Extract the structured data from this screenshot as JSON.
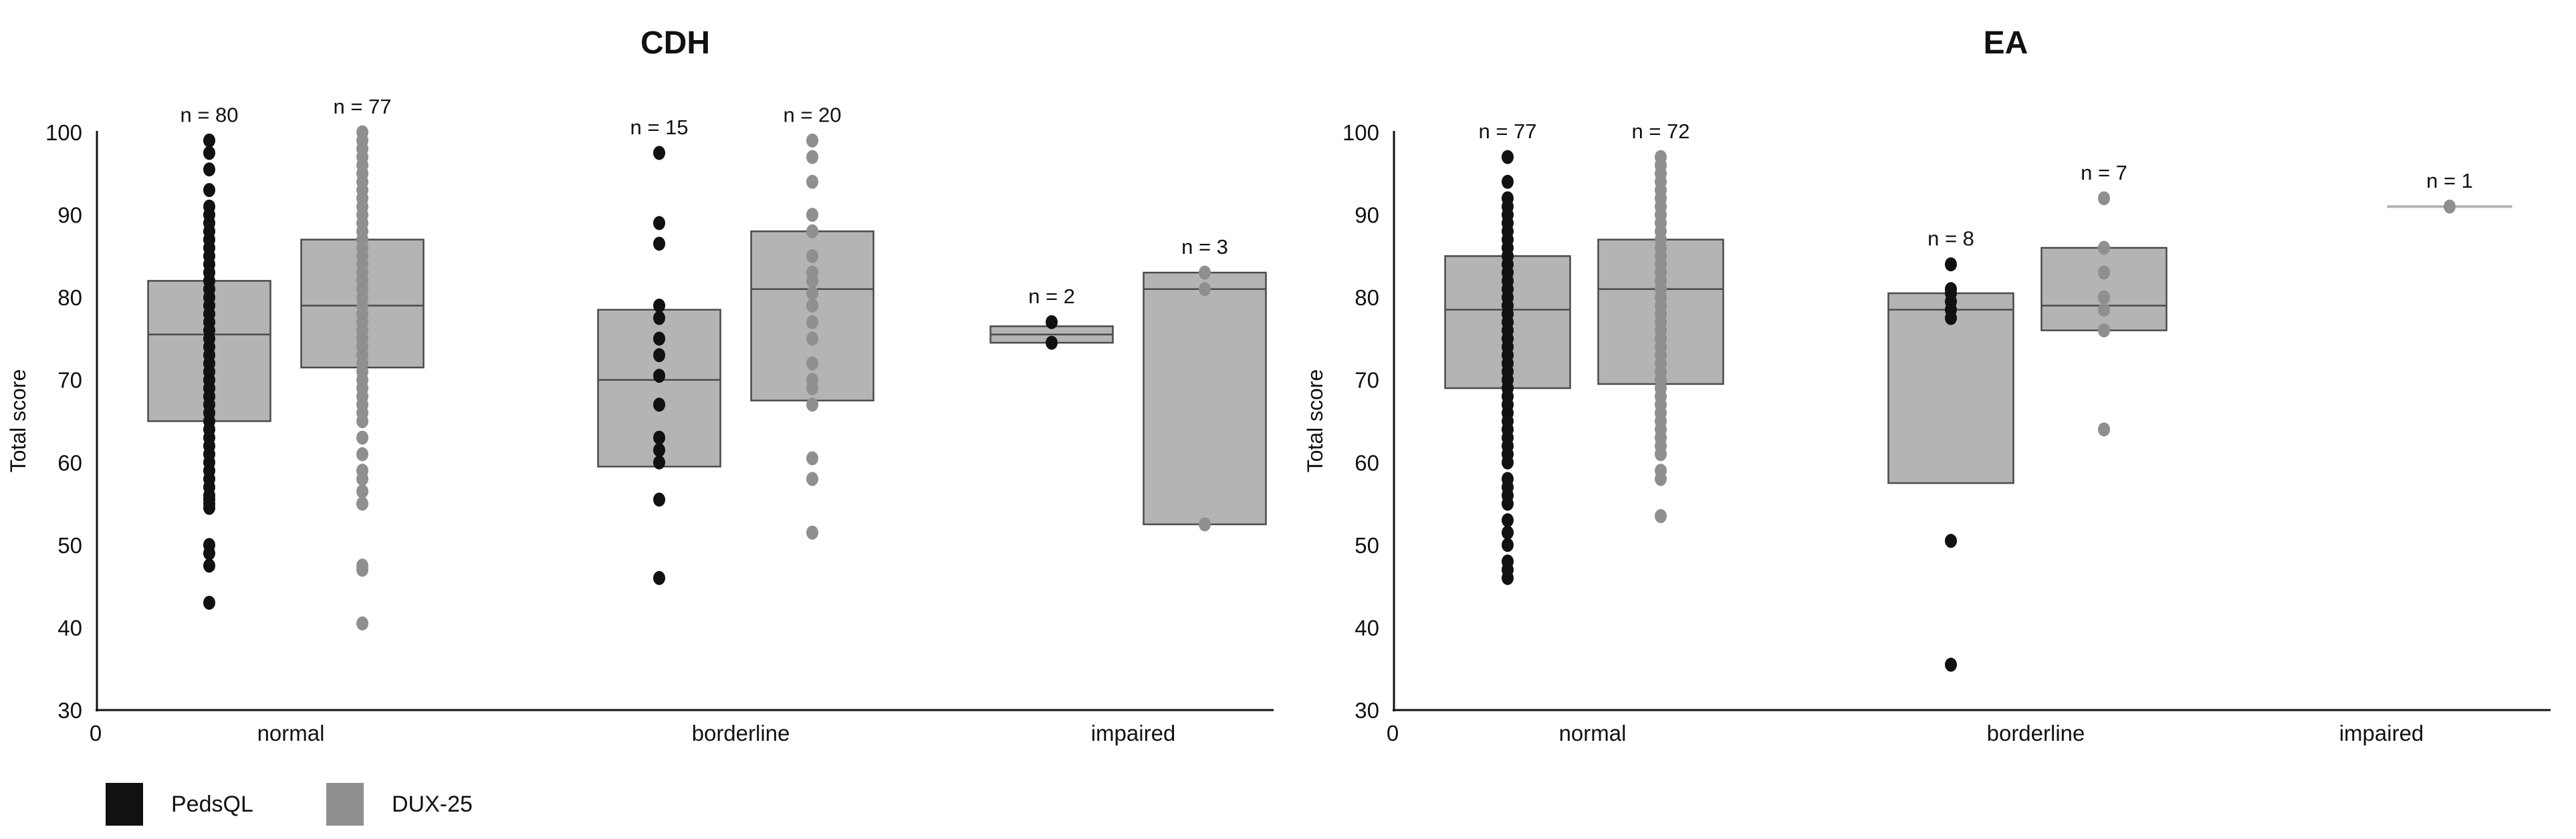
{
  "colors": {
    "pedsql": "#111111",
    "dux25": "#8f8f8f",
    "box_fill": "#b4b4b4",
    "box_edge": "#4a4a4a",
    "axis": "#111111"
  },
  "legend": [
    {
      "name": "PedsQL",
      "color": "#111111"
    },
    {
      "name": "DUX-25",
      "color": "#8f8f8f"
    }
  ],
  "chart_data": [
    {
      "type": "box",
      "title": "CDH",
      "ylabel": "Total score",
      "ylim": [
        30,
        100
      ],
      "yticks": [
        30,
        40,
        50,
        60,
        70,
        80,
        90,
        100
      ],
      "x_origin_label": "0",
      "categories": [
        "normal",
        "borderline",
        "impaired"
      ],
      "series": [
        {
          "name": "PedsQL",
          "groups": [
            {
              "category": "normal",
              "n_label": "n = 80",
              "q1": 65,
              "median": 75.5,
              "q3": 82,
              "points": [
                43,
                47.5,
                49,
                50,
                54.5,
                55,
                55.5,
                56,
                57,
                58,
                59,
                60,
                61,
                62,
                63,
                64,
                65,
                66,
                67,
                68,
                69,
                70,
                71,
                72,
                73,
                74,
                75,
                76,
                77,
                78,
                79,
                80,
                81,
                82,
                83,
                84,
                85,
                86,
                87,
                88,
                89,
                90,
                91,
                93,
                95.5,
                97.5,
                99
              ]
            },
            {
              "category": "borderline",
              "n_label": "n = 15",
              "q1": 59.5,
              "median": 70,
              "q3": 78.5,
              "points": [
                46,
                55.5,
                60,
                61.5,
                63,
                67,
                70.5,
                73,
                75,
                77.5,
                79,
                86.5,
                89,
                97.5
              ]
            },
            {
              "category": "impaired",
              "n_label": "n = 2",
              "q1": 74.5,
              "median": 75.5,
              "q3": 76.5,
              "points": [
                74.5,
                77
              ]
            }
          ]
        },
        {
          "name": "DUX-25",
          "groups": [
            {
              "category": "normal",
              "n_label": "n = 77",
              "q1": 71.5,
              "median": 79,
              "q3": 87,
              "points": [
                40.5,
                47,
                47.5,
                55,
                56.5,
                58,
                59,
                61,
                63,
                65,
                66,
                67,
                68,
                69,
                70,
                71,
                72,
                73,
                74,
                75,
                76,
                77,
                78,
                79,
                80,
                81,
                82,
                83,
                84,
                85,
                86,
                87,
                88,
                89,
                90,
                91,
                92,
                93,
                94,
                95,
                96,
                97,
                98,
                99,
                100
              ]
            },
            {
              "category": "borderline",
              "n_label": "n = 20",
              "q1": 67.5,
              "median": 81,
              "q3": 88,
              "points": [
                51.5,
                58,
                60.5,
                67,
                69,
                70,
                72,
                75,
                77,
                79,
                80.5,
                82,
                83,
                85,
                88,
                90,
                94,
                97,
                99
              ]
            },
            {
              "category": "impaired",
              "n_label": "n = 3",
              "q1": 52.5,
              "median": 81,
              "q3": 83,
              "points": [
                52.5,
                81,
                83
              ]
            }
          ]
        }
      ]
    },
    {
      "type": "box",
      "title": "EA",
      "ylabel": "Total score",
      "ylim": [
        30,
        100
      ],
      "yticks": [
        30,
        40,
        50,
        60,
        70,
        80,
        90,
        100
      ],
      "x_origin_label": "0",
      "categories": [
        "normal",
        "borderline",
        "impaired"
      ],
      "series": [
        {
          "name": "PedsQL",
          "groups": [
            {
              "category": "normal",
              "n_label": "n = 77",
              "q1": 69,
              "median": 78.5,
              "q3": 85,
              "points": [
                46,
                47,
                48,
                50,
                51.5,
                53,
                55,
                56,
                57,
                58,
                60,
                61,
                62,
                63,
                64,
                65,
                66,
                67,
                68,
                69,
                70,
                71,
                72,
                73,
                74,
                75,
                76,
                77,
                78,
                79,
                80,
                81,
                82,
                83,
                84,
                85,
                86,
                87,
                88,
                89,
                90,
                91,
                92,
                94,
                97
              ]
            },
            {
              "category": "borderline",
              "n_label": "n = 8",
              "q1": 57.5,
              "median": 78.5,
              "q3": 80.5,
              "points": [
                35.5,
                50.5,
                77.5,
                78.5,
                79.5,
                80.5,
                81,
                84
              ]
            },
            {
              "category": "impaired",
              "n_label": "",
              "q1": null,
              "median": null,
              "q3": null,
              "points": []
            }
          ]
        },
        {
          "name": "DUX-25",
          "groups": [
            {
              "category": "normal",
              "n_label": "n = 72",
              "q1": 69.5,
              "median": 81,
              "q3": 87,
              "points": [
                53.5,
                58,
                59,
                61,
                62,
                63,
                64,
                65,
                66,
                67,
                68,
                69,
                70,
                71,
                72,
                73,
                74,
                75,
                76,
                77,
                78,
                79,
                80,
                81,
                82,
                83,
                84,
                85,
                86,
                87,
                88,
                89,
                90,
                91,
                92,
                93,
                94,
                95,
                96,
                97
              ]
            },
            {
              "category": "borderline",
              "n_label": "n = 7",
              "q1": 76,
              "median": 79,
              "q3": 86,
              "points": [
                64,
                76,
                78.5,
                80,
                83,
                86,
                92
              ]
            },
            {
              "category": "impaired",
              "n_label": "n = 1",
              "q1": 91,
              "median": 91,
              "q3": 91,
              "points": [
                91
              ]
            }
          ]
        }
      ]
    }
  ]
}
